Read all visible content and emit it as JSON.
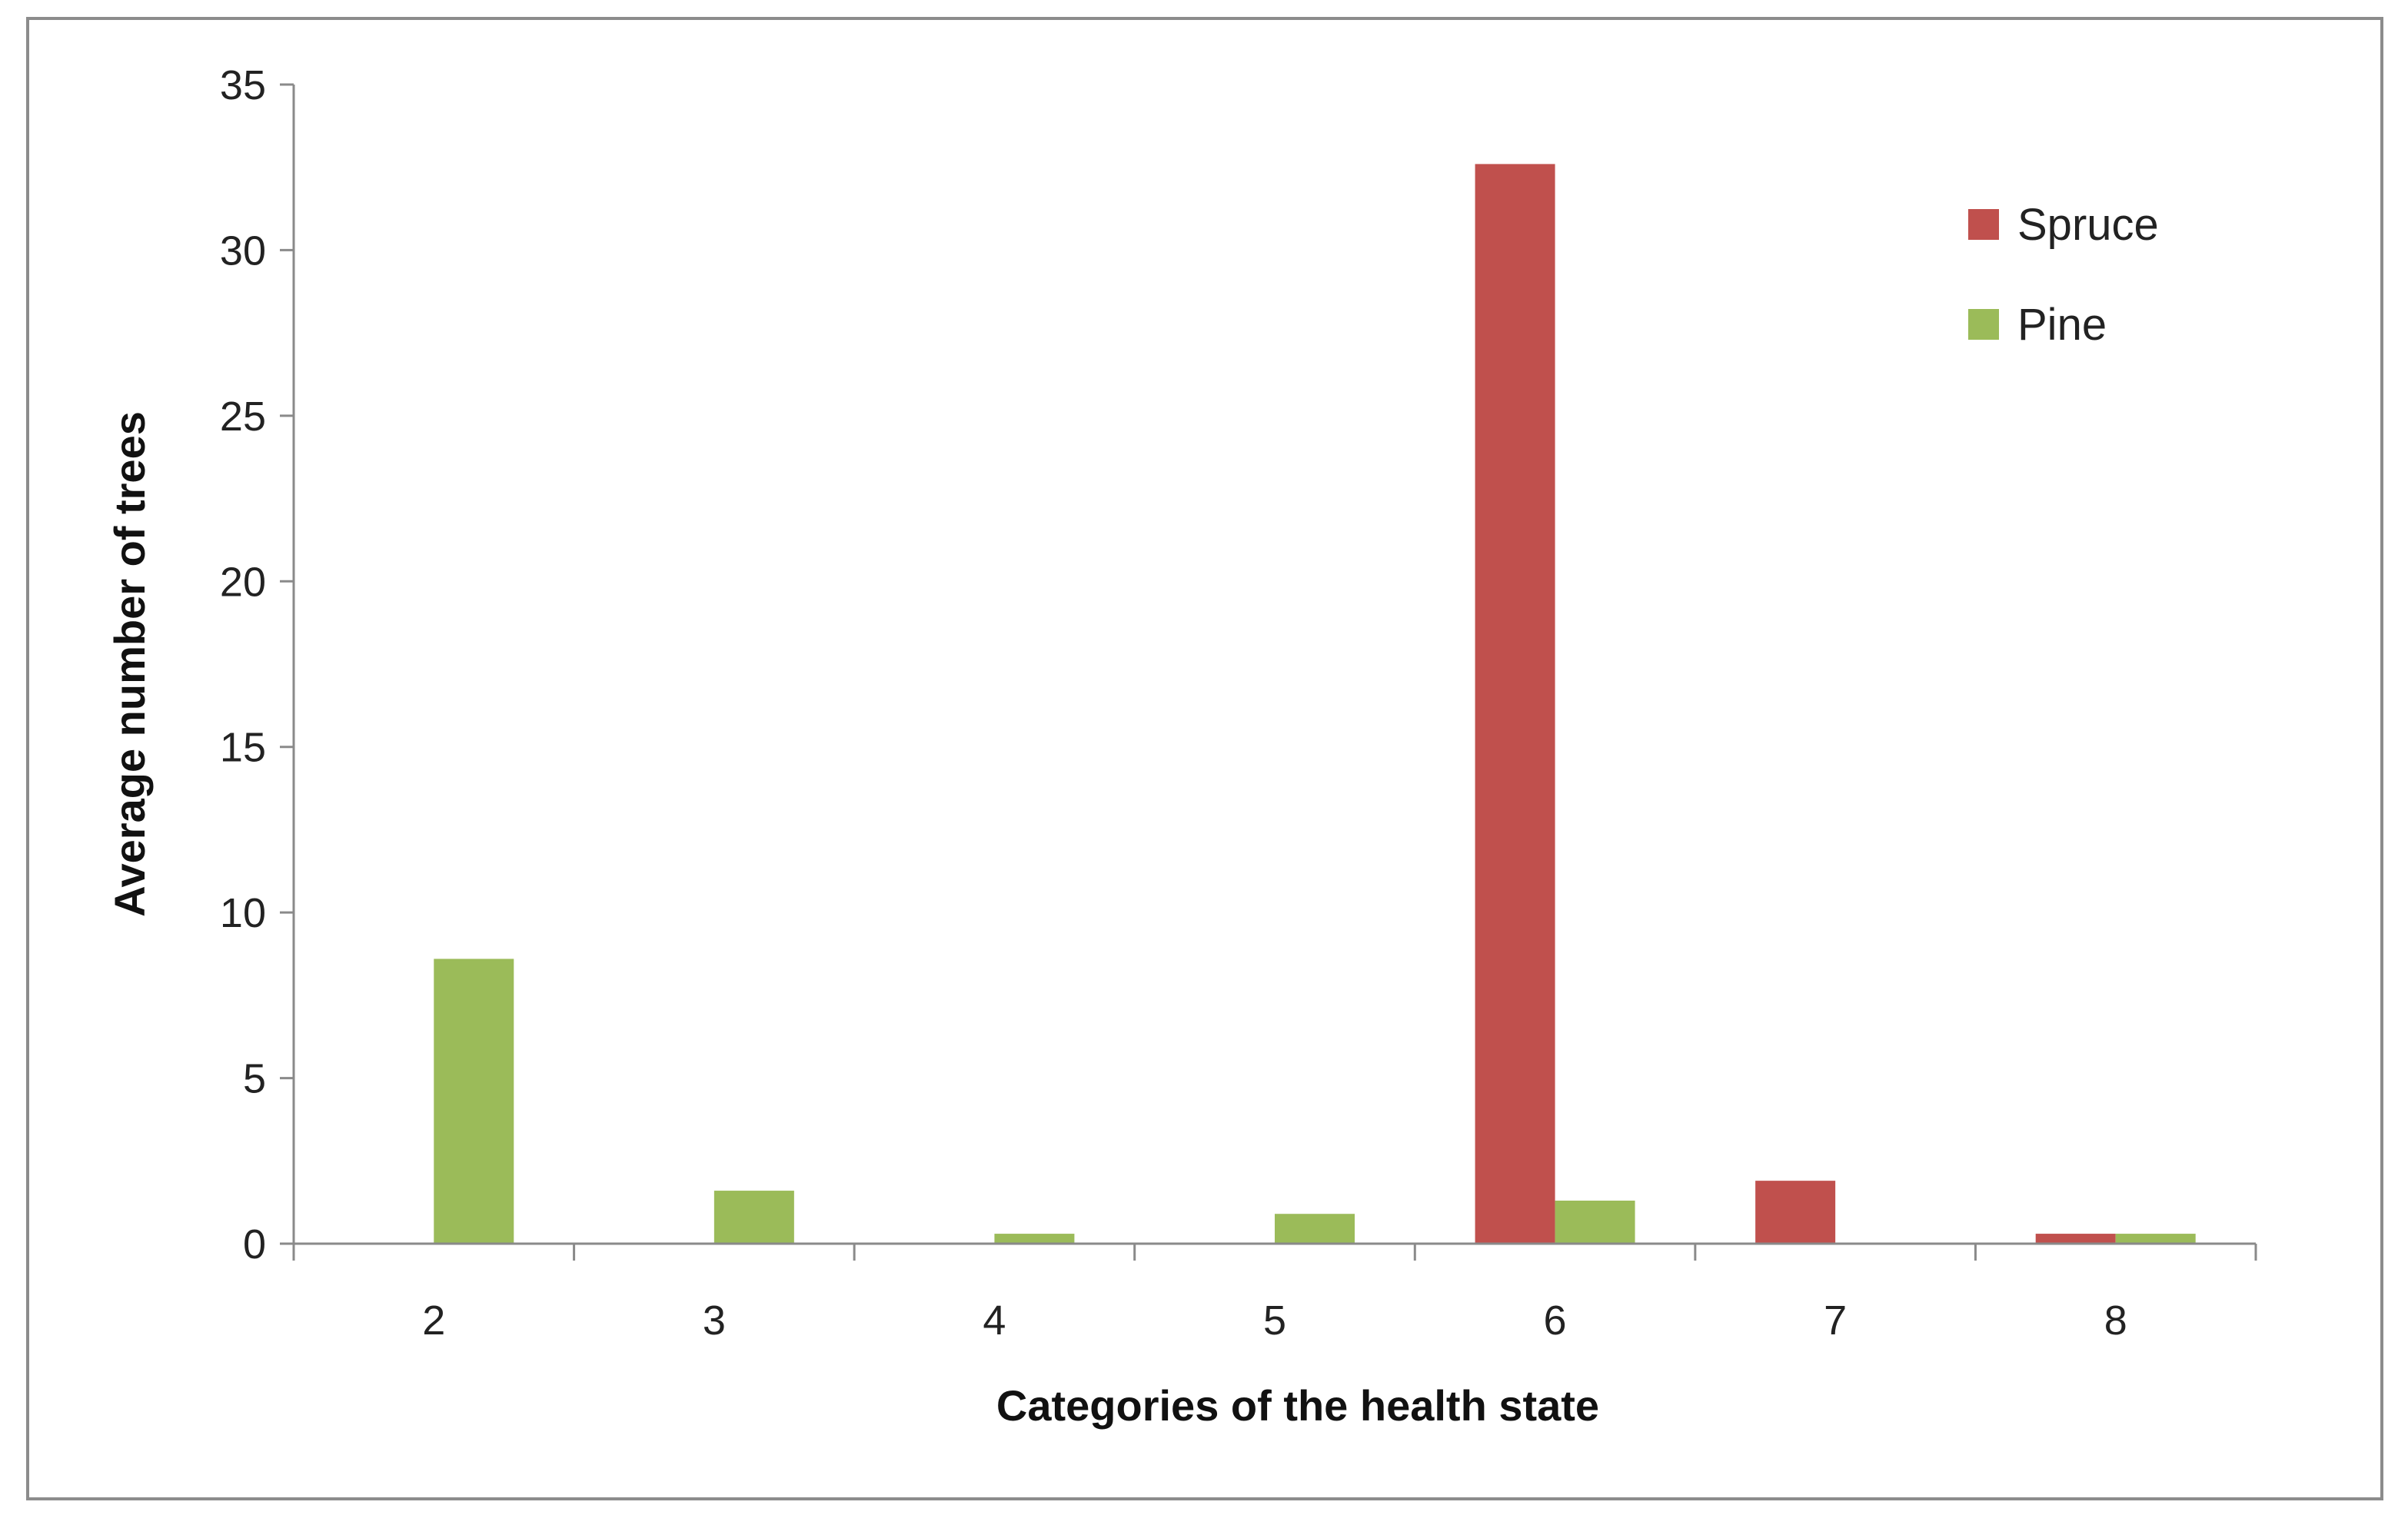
{
  "chart_data": {
    "type": "bar",
    "title": "",
    "xlabel": "Categories of the health state",
    "ylabel": "Average number of trees",
    "categories": [
      "2",
      "3",
      "4",
      "5",
      "6",
      "7",
      "8"
    ],
    "series": [
      {
        "name": "Spruce",
        "color": "#c0504d",
        "values": [
          0,
          0,
          0,
          0,
          32.6,
          1.9,
          0.3
        ]
      },
      {
        "name": "Pine",
        "color": "#9bbb59",
        "values": [
          8.6,
          1.6,
          0.3,
          0.9,
          1.3,
          0,
          0.3
        ]
      }
    ],
    "ylim": [
      0,
      35
    ],
    "yticks": [
      "0",
      "5",
      "10",
      "15",
      "20",
      "25",
      "30",
      "35"
    ],
    "grid": false,
    "legend_position": "top-right"
  }
}
